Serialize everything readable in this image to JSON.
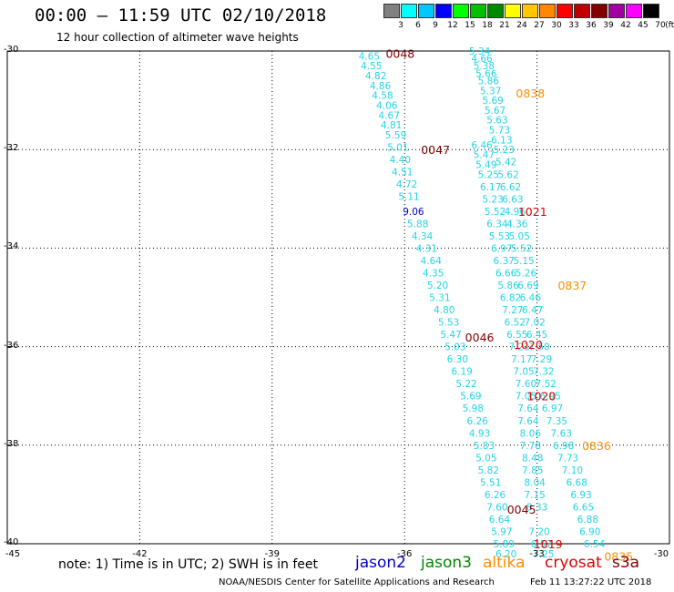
{
  "title": "00:00 – 11:59 UTC 02/10/2018",
  "subtitle": "12 hour collection of altimeter wave heights",
  "legend": {
    "colors": [
      "#808080",
      "#00ffff",
      "#00c8ff",
      "#0000ff",
      "#00ff00",
      "#00c000",
      "#008800",
      "#ffff00",
      "#ffc800",
      "#ff8800",
      "#ff0000",
      "#c00000",
      "#800000",
      "#a000a0",
      "#ff00ff",
      "#000000"
    ],
    "labels": [
      "3",
      "6",
      "9",
      "12",
      "15",
      "18",
      "21",
      "24",
      "27",
      "30",
      "33",
      "36",
      "39",
      "42",
      "45",
      "70",
      "(ft)"
    ]
  },
  "axes": {
    "y_labels": [
      "-30",
      "-32",
      "-34",
      "-36",
      "-38",
      "-40"
    ],
    "x_labels": [
      "-45",
      "-42",
      "-39",
      "-36",
      "-33",
      "-30"
    ]
  },
  "chart_data": {
    "type": "scatter",
    "x_range": [
      -45,
      -30
    ],
    "y_range": [
      -40,
      -30
    ],
    "tracks": [
      {
        "color": "#22d4e6",
        "points": [
          [
            -36.8,
            -30.1,
            "4.65"
          ],
          [
            -36.75,
            -30.3,
            "4.55"
          ],
          [
            -36.65,
            -30.5,
            "4.82"
          ],
          [
            -36.55,
            -30.7,
            "4.86"
          ],
          [
            -36.5,
            -30.9,
            "4.58"
          ],
          [
            -36.4,
            -31.1,
            "4.06"
          ],
          [
            -36.35,
            -31.3,
            "4.67"
          ],
          [
            -36.3,
            -31.5,
            "4.81"
          ],
          [
            -36.2,
            -31.7,
            "5.59"
          ],
          [
            -36.15,
            -31.95,
            "5.01"
          ],
          [
            -36.1,
            -32.2,
            "4.40"
          ],
          [
            -36.05,
            -32.45,
            "4.51"
          ],
          [
            -35.95,
            -32.7,
            "4.72"
          ],
          [
            -35.9,
            -32.95,
            "5.11"
          ],
          [
            -35.7,
            -33.5,
            "5.88"
          ],
          [
            -35.6,
            -33.75,
            "4.34"
          ],
          [
            -35.5,
            -34.0,
            "4.31"
          ],
          [
            -35.4,
            -34.25,
            "4.64"
          ],
          [
            -35.35,
            -34.5,
            "4.35"
          ],
          [
            -35.25,
            -34.75,
            "5.20"
          ],
          [
            -35.2,
            -35.0,
            "5.31"
          ],
          [
            -35.1,
            -35.25,
            "4.80"
          ],
          [
            -35.0,
            -35.5,
            "5.53"
          ],
          [
            -34.95,
            -35.75,
            "5.47"
          ],
          [
            -34.85,
            -36.0,
            "5.03"
          ],
          [
            -34.8,
            -36.25,
            "6.30"
          ],
          [
            -34.7,
            -36.5,
            "6.19"
          ],
          [
            -34.6,
            -36.75,
            "5.22"
          ],
          [
            -34.5,
            -37.0,
            "5.69"
          ],
          [
            -34.45,
            -37.25,
            "5.98"
          ],
          [
            -34.35,
            -37.5,
            "6.26"
          ],
          [
            -34.3,
            -37.75,
            "4.93"
          ],
          [
            -34.2,
            -38.0,
            "5.83"
          ],
          [
            -34.15,
            -38.25,
            "5.05"
          ],
          [
            -34.1,
            -38.5,
            "5.82"
          ],
          [
            -34.05,
            -38.75,
            "5.51"
          ],
          [
            -33.95,
            -39.0,
            "6.26"
          ],
          [
            -33.9,
            -39.25,
            "7.60"
          ],
          [
            -33.85,
            -39.5,
            "6.64"
          ],
          [
            -33.8,
            -39.75,
            "5.97"
          ],
          [
            -33.75,
            -40.0,
            "5.89"
          ],
          [
            -33.7,
            -40.2,
            "6.20"
          ]
        ]
      },
      {
        "color": "#0000cc",
        "points": [
          [
            -35.8,
            -33.25,
            "9.06"
          ]
        ]
      },
      {
        "color": "#22d4e6",
        "points": [
          [
            -34.3,
            -30.0,
            "5.34"
          ],
          [
            -34.25,
            -30.15,
            "4.66"
          ],
          [
            -34.2,
            -30.3,
            "5.38"
          ],
          [
            -34.15,
            -30.45,
            "5.66"
          ],
          [
            -34.1,
            -30.6,
            "5.86"
          ],
          [
            -34.05,
            -30.8,
            "5.37"
          ],
          [
            -34.0,
            -31.0,
            "5.69"
          ],
          [
            -33.95,
            -31.2,
            "5.67"
          ],
          [
            -33.9,
            -31.4,
            "5.63"
          ],
          [
            -33.85,
            -31.6,
            "5.73"
          ],
          [
            -33.8,
            -31.8,
            "6.13"
          ],
          [
            -33.75,
            -32.0,
            "5.23"
          ],
          [
            -33.7,
            -32.25,
            "5.42"
          ],
          [
            -33.65,
            -32.5,
            "5.62"
          ],
          [
            -33.6,
            -32.75,
            "6.62"
          ],
          [
            -33.55,
            -33.0,
            "6.63"
          ],
          [
            -33.5,
            -33.25,
            "4.96"
          ],
          [
            -33.45,
            -33.5,
            "4.36"
          ],
          [
            -33.4,
            -33.75,
            "5.05"
          ],
          [
            -33.35,
            -34.0,
            "5.52"
          ],
          [
            -33.3,
            -34.25,
            "5.15"
          ],
          [
            -33.25,
            -34.5,
            "5.26"
          ],
          [
            -33.2,
            -34.75,
            "6.69"
          ],
          [
            -33.15,
            -35.0,
            "6.46"
          ],
          [
            -33.1,
            -35.25,
            "6.47"
          ],
          [
            -33.05,
            -35.5,
            "7.02"
          ],
          [
            -33.0,
            -35.75,
            "6.45"
          ],
          [
            -32.95,
            -36.0,
            "7.50"
          ],
          [
            -32.9,
            -36.25,
            "7.29"
          ],
          [
            -32.85,
            -36.5,
            "7.32"
          ],
          [
            -32.8,
            -36.75,
            "7.52"
          ],
          [
            -32.7,
            -37.0,
            "6.95"
          ],
          [
            -32.65,
            -37.25,
            "6.97"
          ],
          [
            -32.55,
            -37.5,
            "7.35"
          ],
          [
            -32.45,
            -37.75,
            "7.63"
          ],
          [
            -32.4,
            -38.0,
            "6.98"
          ],
          [
            -32.3,
            -38.25,
            "7.73"
          ],
          [
            -32.2,
            -38.5,
            "7.10"
          ],
          [
            -32.1,
            -38.75,
            "6.68"
          ],
          [
            -32.0,
            -39.0,
            "6.93"
          ],
          [
            -31.95,
            -39.25,
            "6.65"
          ],
          [
            -31.85,
            -39.5,
            "6.88"
          ],
          [
            -31.8,
            -39.75,
            "6.90"
          ],
          [
            -31.7,
            -40.0,
            "6.54"
          ]
        ]
      },
      {
        "color": "#22d4e6",
        "points": [
          [
            -34.25,
            -31.9,
            "6.46"
          ],
          [
            -34.2,
            -32.1,
            "5.47"
          ],
          [
            -34.15,
            -32.3,
            "5.49"
          ],
          [
            -34.1,
            -32.5,
            "5.25"
          ],
          [
            -34.05,
            -32.75,
            "6.17"
          ],
          [
            -34.0,
            -33.0,
            "5.23"
          ],
          [
            -33.95,
            -33.25,
            "5.52"
          ],
          [
            -33.9,
            -33.5,
            "6.34"
          ],
          [
            -33.85,
            -33.75,
            "5.53"
          ],
          [
            -33.8,
            -34.0,
            "6.97"
          ],
          [
            -33.75,
            -34.25,
            "6.37"
          ],
          [
            -33.7,
            -34.5,
            "6.66"
          ],
          [
            -33.65,
            -34.75,
            "5.86"
          ],
          [
            -33.6,
            -35.0,
            "6.82"
          ],
          [
            -33.55,
            -35.25,
            "7.27"
          ],
          [
            -33.5,
            -35.5,
            "6.52"
          ],
          [
            -33.45,
            -35.75,
            "6.55"
          ],
          [
            -33.4,
            -36.0,
            "7.21"
          ],
          [
            -33.35,
            -36.25,
            "7.17"
          ],
          [
            -33.3,
            -36.5,
            "7.05"
          ],
          [
            -33.25,
            -36.75,
            "7.60"
          ],
          [
            -33.25,
            -37.0,
            "7.05"
          ],
          [
            -33.2,
            -37.25,
            "7.64"
          ],
          [
            -33.2,
            -37.5,
            "7.64"
          ],
          [
            -33.15,
            -37.75,
            "8.06"
          ],
          [
            -33.15,
            -38.0,
            "7.78"
          ],
          [
            -33.1,
            -38.25,
            "8.48"
          ],
          [
            -33.1,
            -38.5,
            "7.85"
          ],
          [
            -33.05,
            -38.75,
            "8.04"
          ],
          [
            -33.05,
            -39.0,
            "7.15"
          ],
          [
            -33.0,
            -39.25,
            "8.33"
          ],
          [
            -32.95,
            -39.75,
            "7.20"
          ],
          [
            -32.9,
            -40.0,
            "6.57"
          ],
          [
            -32.85,
            -40.2,
            "7.25"
          ]
        ]
      }
    ],
    "time_labels": [
      {
        "x": -36.1,
        "y": -30.05,
        "text": "0048",
        "color": "#800000"
      },
      {
        "x": -33.15,
        "y": -30.85,
        "text": "0838",
        "color": "#ff8c00"
      },
      {
        "x": -35.3,
        "y": -32.0,
        "text": "0047",
        "color": "#800000"
      },
      {
        "x": -33.1,
        "y": -33.25,
        "text": "1021",
        "color": "#dd0000"
      },
      {
        "x": -32.2,
        "y": -34.75,
        "text": "0837",
        "color": "#ff8c00"
      },
      {
        "x": -34.3,
        "y": -35.8,
        "text": "0046",
        "color": "#800000"
      },
      {
        "x": -33.2,
        "y": -35.95,
        "text": "1020",
        "color": "#dd0000"
      },
      {
        "x": -32.9,
        "y": -37.0,
        "text": "1020",
        "color": "#dd0000"
      },
      {
        "x": -31.65,
        "y": -38.0,
        "text": "0836",
        "color": "#ff8c00"
      },
      {
        "x": -33.35,
        "y": -39.3,
        "text": "0045",
        "color": "#800000"
      },
      {
        "x": -32.75,
        "y": -40.0,
        "text": "1019",
        "color": "#dd0000"
      },
      {
        "x": -31.15,
        "y": -40.25,
        "text": "0835",
        "color": "#ff8c00"
      }
    ]
  },
  "note": "note: 1) Time is in UTC; 2) SWH is in feet",
  "satellites": [
    {
      "name": "jason2",
      "color": "#0000cc"
    },
    {
      "name": "jason3",
      "color": "#008800"
    },
    {
      "name": "altika",
      "color": "#ff8c00"
    },
    {
      "name": "cryosat",
      "color": "#dd0000"
    },
    {
      "name": "s3a",
      "color": "#800000"
    }
  ],
  "credit": "NOAA/NESDIS Center for Satellite Applications and Research",
  "stamp": "Feb 11 13:27:22 UTC 2018"
}
